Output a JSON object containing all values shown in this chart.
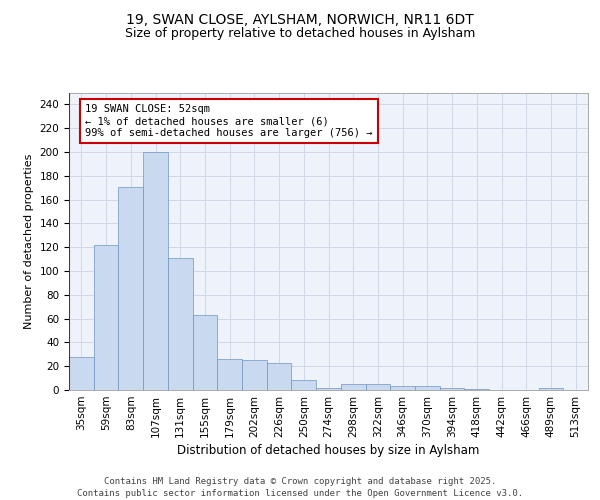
{
  "title1": "19, SWAN CLOSE, AYLSHAM, NORWICH, NR11 6DT",
  "title2": "Size of property relative to detached houses in Aylsham",
  "xlabel": "Distribution of detached houses by size in Aylsham",
  "ylabel": "Number of detached properties",
  "bin_labels": [
    "35sqm",
    "59sqm",
    "83sqm",
    "107sqm",
    "131sqm",
    "155sqm",
    "179sqm",
    "202sqm",
    "226sqm",
    "250sqm",
    "274sqm",
    "298sqm",
    "322sqm",
    "346sqm",
    "370sqm",
    "394sqm",
    "418sqm",
    "442sqm",
    "466sqm",
    "489sqm",
    "513sqm"
  ],
  "bar_values": [
    28,
    122,
    171,
    200,
    111,
    63,
    26,
    25,
    23,
    8,
    2,
    5,
    5,
    3,
    3,
    2,
    1,
    0,
    0,
    2,
    0
  ],
  "bar_color": "#c9d9f0",
  "bar_edge_color": "#7094c0",
  "grid_color": "#d0d8e8",
  "background_color": "#eef2fa",
  "vline_color": "#cc0000",
  "annotation_text": "19 SWAN CLOSE: 52sqm\n← 1% of detached houses are smaller (6)\n99% of semi-detached houses are larger (756) →",
  "annotation_box_color": "#ffffff",
  "annotation_box_edge": "#cc0000",
  "ylim": [
    0,
    250
  ],
  "yticks": [
    0,
    20,
    40,
    60,
    80,
    100,
    120,
    140,
    160,
    180,
    200,
    220,
    240
  ],
  "footer": "Contains HM Land Registry data © Crown copyright and database right 2025.\nContains public sector information licensed under the Open Government Licence v3.0.",
  "title1_fontsize": 10,
  "title2_fontsize": 9,
  "xlabel_fontsize": 8.5,
  "ylabel_fontsize": 8,
  "tick_fontsize": 7.5,
  "annotation_fontsize": 7.5,
  "footer_fontsize": 6.5
}
